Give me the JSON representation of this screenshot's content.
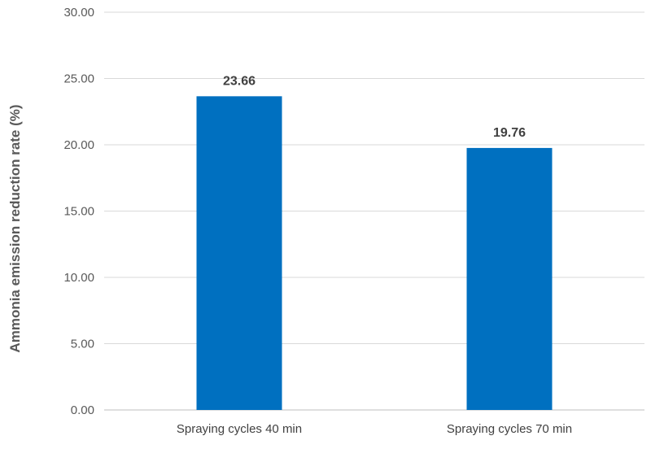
{
  "chart_data": {
    "type": "bar",
    "title": "",
    "xlabel": "",
    "ylabel": "Ammonia emission reduction rate (%)",
    "categories": [
      "Spraying cycles 40 min",
      "Spraying cycles 70 min"
    ],
    "values": [
      23.66,
      19.76
    ],
    "data_labels": [
      "23.66",
      "19.76"
    ],
    "ylim": [
      0,
      30
    ],
    "yticks": [
      0,
      5,
      10,
      15,
      20,
      25,
      30
    ],
    "ytick_labels": [
      "0.00",
      "5.00",
      "10.00",
      "15.00",
      "20.00",
      "25.00",
      "30.00"
    ],
    "bar_color": "#0070c0",
    "grid": true,
    "legend": "none"
  }
}
